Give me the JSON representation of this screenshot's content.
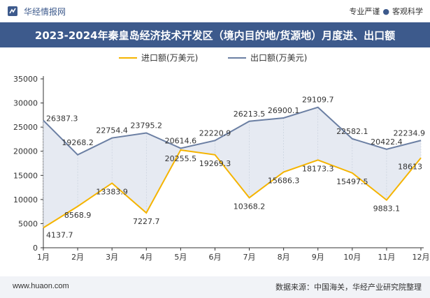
{
  "header": {
    "brand": "华经情报网",
    "slogan_left": "专业严谨",
    "slogan_dot": "●",
    "slogan_right": "客观科学"
  },
  "title": "2023-2024年秦皇岛经济技术开发区（境内目的地/货源地）月度进、出口额",
  "footer": {
    "website": "www.huaon.com",
    "source": "数据来源：中国海关，华经产业研究院整理"
  },
  "colors": {
    "accent": "#3d5a8c",
    "import_line": "#f5b400",
    "export_line": "#6b7fa3",
    "fill": "#dde3ee"
  },
  "chart_data": {
    "type": "line",
    "categories": [
      "1月",
      "2月",
      "3月",
      "4月",
      "5月",
      "6月",
      "7月",
      "8月",
      "9月",
      "10月",
      "11月",
      "12月"
    ],
    "series": [
      {
        "name": "进口额(万美元)",
        "values": [
          4137.7,
          8568.9,
          13383.9,
          7227.7,
          20255.5,
          19269.3,
          10368.2,
          15686.3,
          18173.3,
          15497.5,
          9883.1,
          18613
        ],
        "labels": [
          "4137.7",
          "8568.9",
          "13383.9",
          "7227.7",
          "20255.5",
          "19269.3",
          "10368.2",
          "15686.3",
          "18173.3",
          "15497.5",
          "9883.1",
          "18613"
        ]
      },
      {
        "name": "出口额(万美元)",
        "values": [
          26387.3,
          19268.2,
          22754.4,
          23795.2,
          20614.6,
          22220.9,
          26213.5,
          26900.1,
          29109.7,
          22582.1,
          20422.4,
          22234.9
        ],
        "labels": [
          "26387.3",
          "19268.2",
          "22754.4",
          "23795.2",
          "20614.6",
          "22220.9",
          "26213.5",
          "26900.1",
          "29109.7",
          "22582.1",
          "20422.4",
          "22234.9"
        ]
      }
    ],
    "yticks": [
      "0",
      "5000",
      "10000",
      "15000",
      "20000",
      "25000",
      "30000",
      "35000"
    ],
    "ylim": [
      0,
      35000
    ],
    "fill_between": true,
    "legend_position": "top-center",
    "grid": false
  }
}
